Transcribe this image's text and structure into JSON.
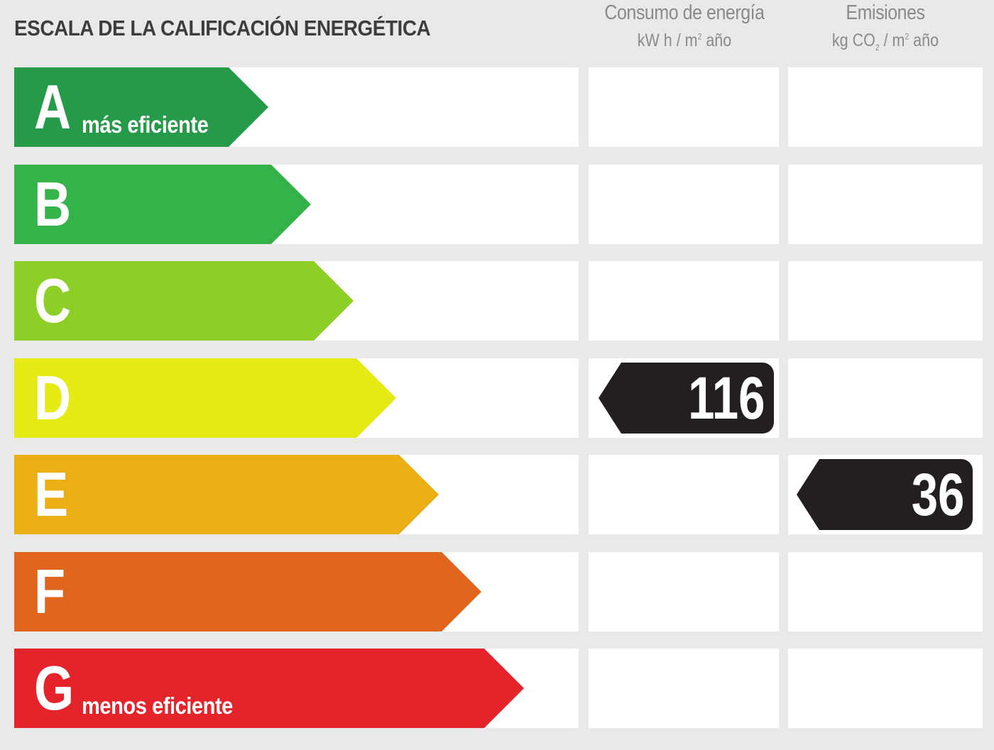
{
  "header": {
    "title": "ESCALA DE LA CALIFICACIÓN ENERGÉTICA",
    "energy_col": {
      "title": "Consumo de energía",
      "unit_prefix": "kW h / m",
      "unit_sup": "2",
      "unit_suffix": " año"
    },
    "emissions_col": {
      "title": "Emisiones",
      "unit_prefix": "kg CO",
      "unit_sub": "2",
      "unit_mid": " / m",
      "unit_sup": "2",
      "unit_suffix": " año"
    }
  },
  "ratings": [
    {
      "letter": "A",
      "label": "más eficiente",
      "color": "#259a48"
    },
    {
      "letter": "B",
      "label": "",
      "color": "#34b34a"
    },
    {
      "letter": "C",
      "label": "",
      "color": "#8dcf26"
    },
    {
      "letter": "D",
      "label": "",
      "color": "#e5ea12"
    },
    {
      "letter": "E",
      "label": "",
      "color": "#ebaf14"
    },
    {
      "letter": "F",
      "label": "",
      "color": "#e0661d"
    },
    {
      "letter": "G",
      "label": "menos eficiente",
      "color": "#e4232a"
    }
  ],
  "energy_rating": {
    "letter": "D",
    "value": "116"
  },
  "emissions_rating": {
    "letter": "E",
    "value": "36"
  }
}
